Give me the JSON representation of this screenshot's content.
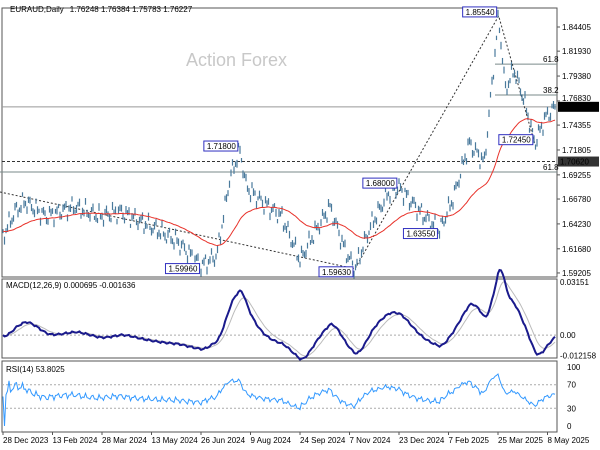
{
  "header": {
    "symbol": "EURAUD,Daily",
    "ohlc": "1.76248 1.76384 1.75783 1.76227"
  },
  "watermark": "Action Forex",
  "chart_data": [
    {
      "type": "line",
      "name": "price",
      "ylim": [
        1.58,
        1.865
      ],
      "points": [
        [
          "2023-12-28",
          1.63
        ],
        [
          "2024-01-08",
          1.655
        ],
        [
          "2024-01-17",
          1.665
        ],
        [
          "2024-02-05",
          1.65
        ],
        [
          "2024-03-02",
          1.66
        ],
        [
          "2024-03-25",
          1.65
        ],
        [
          "2024-04-13",
          1.655
        ],
        [
          "2024-05-10",
          1.64
        ],
        [
          "2024-06-03",
          1.625
        ],
        [
          "2024-06-26",
          1.5996
        ],
        [
          "2024-07-10",
          1.61
        ],
        [
          "2024-07-22",
          1.69
        ],
        [
          "2024-07-31",
          1.718
        ],
        [
          "2024-08-06",
          1.68
        ],
        [
          "2024-08-20",
          1.665
        ],
        [
          "2024-09-07",
          1.65
        ],
        [
          "2024-09-24",
          1.605
        ],
        [
          "2024-10-03",
          1.625
        ],
        [
          "2024-10-21",
          1.66
        ],
        [
          "2024-11-04",
          1.615
        ],
        [
          "2024-11-13",
          1.5963
        ],
        [
          "2024-11-27",
          1.64
        ],
        [
          "2024-12-14",
          1.675
        ],
        [
          "2024-12-23",
          1.68
        ],
        [
          "2025-01-11",
          1.655
        ],
        [
          "2025-01-29",
          1.6355
        ],
        [
          "2025-02-11",
          1.67
        ],
        [
          "2025-02-25",
          1.725
        ],
        [
          "2025-03-11",
          1.705
        ],
        [
          "2025-03-17",
          1.775
        ],
        [
          "2025-03-24",
          1.8554
        ],
        [
          "2025-03-30",
          1.78
        ],
        [
          "2025-04-07",
          1.8
        ],
        [
          "2025-04-16",
          1.77
        ],
        [
          "2025-04-26",
          1.7245
        ],
        [
          "2025-05-05",
          1.75
        ],
        [
          "2025-05-14",
          1.76227
        ]
      ],
      "price_ticks": [
        "1.84405",
        "1.81930",
        "1.79380",
        "1.76830",
        "1.74355",
        "1.71805",
        "1.69255",
        "1.66780",
        "1.64230",
        "1.61680",
        "1.59205"
      ],
      "current_price": "1.76227",
      "current_price_value": 1.76227,
      "level_line": {
        "label": "1.70620",
        "value": 1.7062
      },
      "fib_levels": [
        {
          "label": "61.8",
          "value": 1.806
        },
        {
          "label": "38.2",
          "value": 1.7744
        },
        {
          "label": "61.8",
          "value": 1.6955
        }
      ],
      "annotations": [
        {
          "label": "1.85540",
          "date": "2025-03-24",
          "value": 1.8554
        },
        {
          "label": "1.72450",
          "date": "2025-04-26",
          "value": 1.7245
        },
        {
          "label": "1.71800",
          "date": "2024-07-31",
          "value": 1.718
        },
        {
          "label": "1.68000",
          "date": "2024-12-23",
          "value": 1.68
        },
        {
          "label": "1.63550",
          "date": "2025-01-29",
          "value": 1.6355
        },
        {
          "label": "1.59960",
          "date": "2024-06-26",
          "value": 1.5996
        },
        {
          "label": "1.59630",
          "date": "2024-11-13",
          "value": 1.5963
        }
      ],
      "colors": {
        "price": "#4a7a9c",
        "ma": "#e8322a",
        "label_border": "#3030c0"
      }
    },
    {
      "type": "line",
      "name": "macd",
      "title": "MACD(12,26,9) 0.000695 -0.001636",
      "ticks": [
        "0.03151",
        "0.00",
        "-0.012158"
      ],
      "ylim": [
        -0.0135,
        0.033
      ],
      "colors": {
        "macd": "#1a1a8c",
        "signal": "#bbbbbb"
      }
    },
    {
      "type": "line",
      "name": "rsi",
      "title": "RSI(14) 53.8025",
      "ticks": [
        "100",
        "70",
        "30",
        "0"
      ],
      "ylim": [
        0,
        100
      ],
      "colors": {
        "rsi": "#3399ff"
      }
    }
  ],
  "x_ticks": [
    "28 Dec 2023",
    "13 Feb 2024",
    "28 Mar 2024",
    "13 May 2024",
    "26 Jun 2024",
    "9 Aug 2024",
    "24 Sep 2024",
    "7 Nov 2024",
    "23 Dec 2024",
    "7 Feb 2025",
    "25 Mar 2025",
    "8 May 2025"
  ]
}
